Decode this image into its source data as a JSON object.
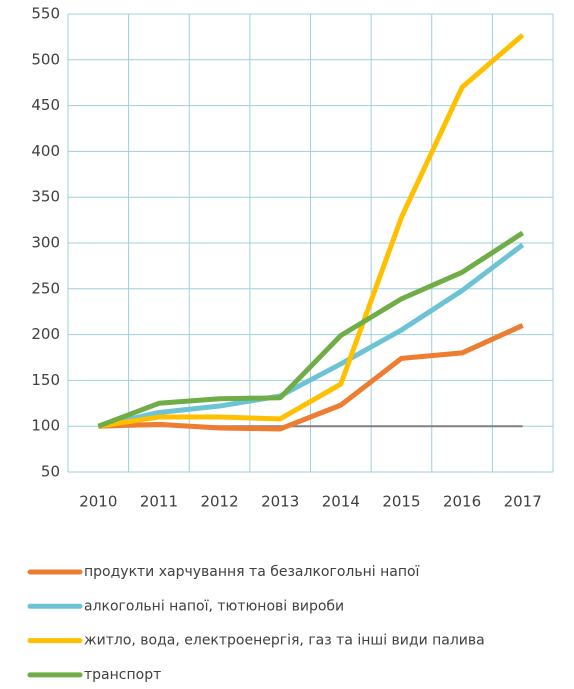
{
  "chart_data": {
    "type": "line",
    "categories": [
      "2010",
      "2011",
      "2012",
      "2013",
      "2014",
      "2015",
      "2016",
      "2017"
    ],
    "series": [
      {
        "name": "продукти харчування та безалкогольні напої",
        "color": "#ed7d31",
        "values": [
          100,
          102,
          98,
          97,
          123,
          174,
          180,
          210
        ]
      },
      {
        "name": "алкогольні напої, тютюнові вироби",
        "color": "#6cc3d4",
        "values": [
          100,
          115,
          122,
          133,
          168,
          205,
          248,
          298
        ]
      },
      {
        "name": "житло, вода, електроенергія, газ та інші види палива",
        "color": "#ffc000",
        "values": [
          100,
          110,
          110,
          108,
          146,
          328,
          470,
          527
        ]
      },
      {
        "name": "транспорт",
        "color": "#70ad47",
        "values": [
          100,
          125,
          130,
          131,
          199,
          239,
          268,
          311
        ]
      },
      {
        "color": "#808080",
        "values": [
          100,
          100,
          100,
          100,
          100,
          100,
          100,
          100
        ]
      }
    ],
    "ylim": [
      50,
      550
    ],
    "yticks": [
      50,
      100,
      150,
      200,
      250,
      300,
      350,
      400,
      450,
      500,
      550
    ],
    "grid": true
  }
}
